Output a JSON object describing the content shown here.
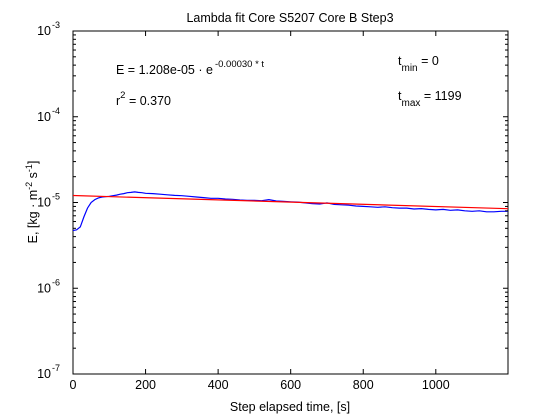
{
  "chart_data": {
    "type": "line",
    "title": "Lambda fit  Core S5207 Core B  Step3",
    "xlabel": "Step elapsed time, [s]",
    "ylabel": {
      "main": "E, [kg · m",
      "exp1": "-2",
      "mid": "  s",
      "exp2": "-1",
      "end": "]"
    },
    "x_scale": "linear",
    "y_scale": "log",
    "xlim": [
      0,
      1199
    ],
    "ylim": [
      1e-07,
      0.001
    ],
    "x_ticks": [
      0,
      200,
      400,
      600,
      800,
      1000
    ],
    "x_tick_labels": [
      "0",
      "200",
      "400",
      "600",
      "800",
      "1000"
    ],
    "y_ticks": [
      {
        "value": 1e-07,
        "base": "10",
        "exp": "-7"
      },
      {
        "value": 1e-06,
        "base": "10",
        "exp": "-6"
      },
      {
        "value": 1e-05,
        "base": "10",
        "exp": "-5"
      },
      {
        "value": 0.0001,
        "base": "10",
        "exp": "-4"
      },
      {
        "value": 0.001,
        "base": "10",
        "exp": "-3"
      }
    ],
    "grid": false,
    "legend": false,
    "series": [
      {
        "color": "#0000ff",
        "kind": "measured",
        "x": [
          0,
          10,
          20,
          30,
          40,
          50,
          60,
          70,
          80,
          90,
          100,
          110,
          120,
          130,
          140,
          150,
          160,
          170,
          180,
          190,
          200,
          220,
          240,
          260,
          280,
          300,
          320,
          340,
          360,
          380,
          400,
          420,
          440,
          460,
          480,
          500,
          520,
          540,
          560,
          580,
          600,
          620,
          640,
          660,
          680,
          700,
          720,
          740,
          760,
          780,
          800,
          820,
          840,
          860,
          880,
          900,
          920,
          940,
          960,
          980,
          1000,
          1020,
          1040,
          1060,
          1080,
          1100,
          1120,
          1140,
          1160,
          1180,
          1199
        ],
        "y": [
          4.7e-06,
          4.8e-06,
          5.2e-06,
          6.8e-06,
          8.6e-06,
          1e-05,
          1.08e-05,
          1.13e-05,
          1.16e-05,
          1.17e-05,
          1.18e-05,
          1.2e-05,
          1.22e-05,
          1.25e-05,
          1.27e-05,
          1.3e-05,
          1.31e-05,
          1.33e-05,
          1.31e-05,
          1.3e-05,
          1.28e-05,
          1.27e-05,
          1.25e-05,
          1.23e-05,
          1.21e-05,
          1.2e-05,
          1.18e-05,
          1.16e-05,
          1.14e-05,
          1.12e-05,
          1.12e-05,
          1.1e-05,
          1.09e-05,
          1.07e-05,
          1.06e-05,
          1.06e-05,
          1.05e-05,
          1.08e-05,
          1.04e-05,
          1.03e-05,
          1.02e-05,
          1.01e-05,
          9.9e-06,
          9.7e-06,
          9.6e-06,
          9.9e-06,
          9.5e-06,
          9.4e-06,
          9.3e-06,
          9.1e-06,
          9e-06,
          8.9e-06,
          8.8e-06,
          8.9e-06,
          8.7e-06,
          8.6e-06,
          8.6e-06,
          8.4e-06,
          8.5e-06,
          8.3e-06,
          8.2e-06,
          8.3e-06,
          8.1e-06,
          8.2e-06,
          8e-06,
          7.9e-06,
          8e-06,
          7.8e-06,
          7.8e-06,
          7.9e-06,
          7.9e-06
        ]
      },
      {
        "color": "#ff0000",
        "kind": "fit",
        "x": [
          0,
          1199
        ],
        "y": [
          1.208e-05,
          8.46e-06
        ]
      }
    ],
    "annotations": {
      "equation": {
        "prefix": "E = 1.208e-05  · e",
        "exponent": "-0.00030 * t"
      },
      "r2": {
        "base": "r",
        "exp": "2",
        "suffix": " = 0.370"
      },
      "tmin": {
        "base": "t",
        "sub": "min",
        "suffix": " = 0"
      },
      "tmax": {
        "base": "t",
        "sub": "max",
        "suffix": " = 1199"
      }
    }
  }
}
